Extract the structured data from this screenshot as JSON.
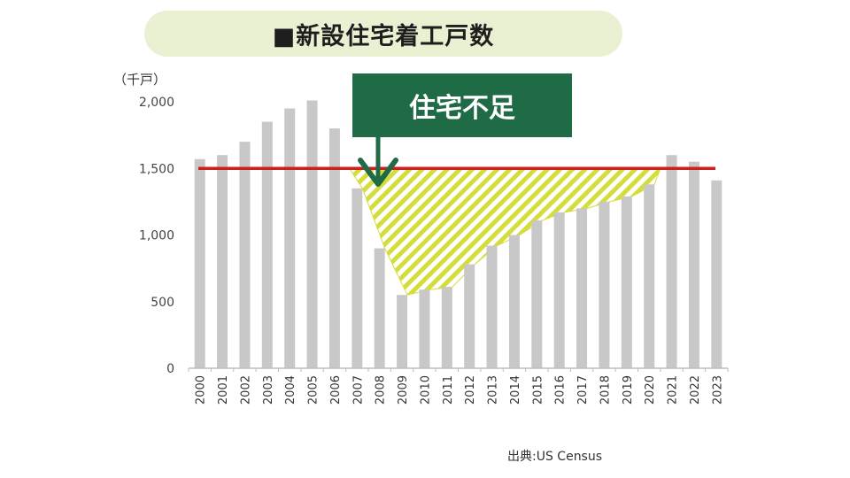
{
  "title": "■新設住宅着工戸数",
  "source": "出典:US Census",
  "callout": "住宅不足",
  "colors": {
    "bar": "#c8c8c8",
    "reference_line": "#cc1f1f",
    "callout_bg": "#1f6b45",
    "hatch": "#d4dd3a",
    "title_bg": "#e9f1d2"
  },
  "chart_data": {
    "type": "bar",
    "title": "■新設住宅着工戸数",
    "ylabel": "（千戸）",
    "xlabel": "",
    "ylim": [
      0,
      2000
    ],
    "yticks": [
      "0",
      "500",
      "1,000",
      "1,500",
      "2,000"
    ],
    "ytick_values": [
      0,
      500,
      1000,
      1500,
      2000
    ],
    "categories": [
      "2000",
      "2001",
      "2002",
      "2003",
      "2004",
      "2005",
      "2006",
      "2007",
      "2008",
      "2009",
      "2010",
      "2011",
      "2012",
      "2013",
      "2014",
      "2015",
      "2016",
      "2017",
      "2018",
      "2019",
      "2020",
      "2021",
      "2022",
      "2023"
    ],
    "values": [
      1570,
      1600,
      1700,
      1850,
      1950,
      2010,
      1800,
      1350,
      900,
      550,
      590,
      610,
      780,
      920,
      1000,
      1110,
      1170,
      1200,
      1250,
      1290,
      1380,
      1600,
      1550,
      1410
    ],
    "reference_line": 1500,
    "shortfall_annotation": "住宅不足",
    "grid": false,
    "legend": "none"
  }
}
